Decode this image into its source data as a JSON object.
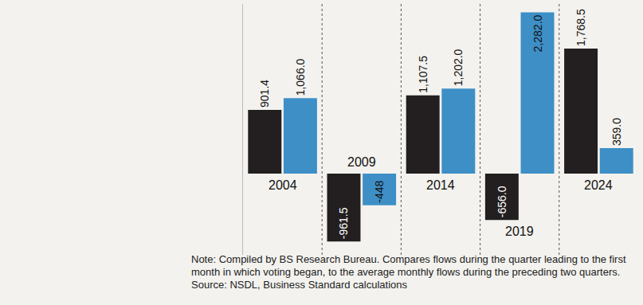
{
  "chart_data": {
    "type": "bar",
    "categories": [
      "2004",
      "2009",
      "2014",
      "2019",
      "2024"
    ],
    "series": [
      {
        "color": "#231f20",
        "values": [
          901.4,
          -961.5,
          1107.5,
          -656.0,
          1768.5
        ],
        "value_labels": [
          "901.4",
          "-961.5",
          "1,107.5",
          "-656.0",
          "1,768.5"
        ]
      },
      {
        "color": "#3d8fc6",
        "values": [
          1066.0,
          -448,
          1202.0,
          2282.0,
          359.0
        ],
        "value_labels": [
          "1,066.0",
          "-448",
          "1,202.0",
          "2,282.0",
          "359.0"
        ]
      }
    ],
    "ylim": [
      -1150,
      2400
    ],
    "yticks": [],
    "grid": false,
    "data_labels": true,
    "tick_labels": false,
    "note": "Note: Compiled by BS Research Bureau. Compares flows during the quarter leading to the first month in which voting began, to the average monthly flows during the preceding two quarters.",
    "source": "Source: NSDL, Business Standard calculations"
  }
}
